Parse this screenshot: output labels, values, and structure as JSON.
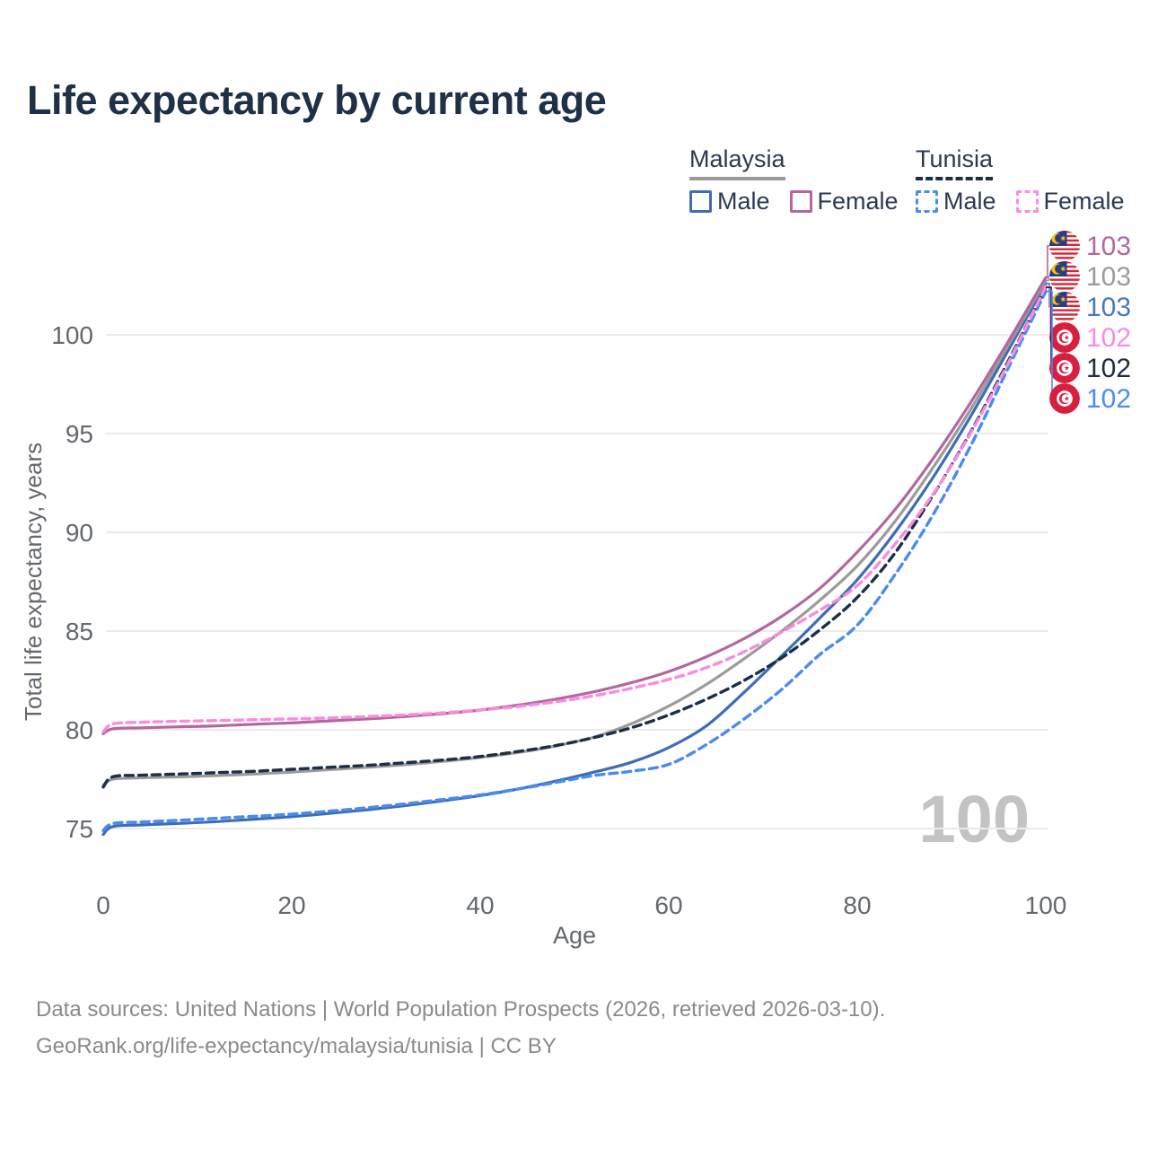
{
  "title": "Life expectancy by current age",
  "legend": {
    "groups": [
      {
        "label": "Malaysia",
        "line_style": "solid",
        "underline_color": "#9b9b9b",
        "items": [
          {
            "label": "Male",
            "color": "#3d6eb5"
          },
          {
            "label": "Female",
            "color": "#b4679e"
          }
        ]
      },
      {
        "label": "Tunisia",
        "line_style": "dashed",
        "underline_color": "#1d2e49",
        "items": [
          {
            "label": "Male",
            "color": "#4a8bf0"
          },
          {
            "label": "Female",
            "color": "#fb8ae0"
          }
        ]
      }
    ]
  },
  "chart_data": {
    "type": "line",
    "title": "Life expectancy by current age",
    "xlabel": "Age",
    "ylabel": "Total life expectancy, years",
    "xlim": [
      0,
      100
    ],
    "ylim": [
      73.6,
      103.6
    ],
    "x_ticks": [
      0,
      20,
      40,
      60,
      80,
      100
    ],
    "y_ticks": [
      75,
      80,
      85,
      90,
      95,
      100
    ],
    "grid": "horizontal-only",
    "legend_position": "top-right",
    "watermark": "100",
    "x": [
      0,
      1,
      4,
      8,
      12,
      16,
      20,
      24,
      28,
      32,
      36,
      40,
      44,
      48,
      52,
      56,
      60,
      64,
      68,
      72,
      76,
      80,
      84,
      88,
      92,
      96,
      100
    ],
    "series": [
      {
        "name": "Malaysia Male",
        "country": "Malaysia",
        "sex": "Male",
        "color": "#3d6eb5",
        "dashed": false,
        "values": [
          74.7,
          75.1,
          75.18,
          75.26,
          75.35,
          75.47,
          75.6,
          75.77,
          75.95,
          76.16,
          76.4,
          76.67,
          77.0,
          77.4,
          77.85,
          78.35,
          79.1,
          80.2,
          81.9,
          83.75,
          85.65,
          87.6,
          90.0,
          92.75,
          95.85,
          99.2,
          102.6
        ]
      },
      {
        "name": "Malaysia",
        "country": "Malaysia",
        "sex": "Both sexes",
        "color": "#9b9b9b",
        "dashed": false,
        "values": [
          77.2,
          77.5,
          77.57,
          77.62,
          77.68,
          77.76,
          77.86,
          77.98,
          78.1,
          78.23,
          78.4,
          78.6,
          78.85,
          79.18,
          79.62,
          80.3,
          81.2,
          82.3,
          83.6,
          85.0,
          86.55,
          88.3,
          90.55,
          93.25,
          96.2,
          99.45,
          102.75
        ]
      },
      {
        "name": "Malaysia Female",
        "country": "Malaysia",
        "sex": "Female",
        "color": "#b4679e",
        "dashed": false,
        "values": [
          79.8,
          80.05,
          80.1,
          80.15,
          80.2,
          80.28,
          80.35,
          80.45,
          80.55,
          80.67,
          80.82,
          81.0,
          81.25,
          81.55,
          81.92,
          82.38,
          82.95,
          83.7,
          84.62,
          85.75,
          87.15,
          89.0,
          91.15,
          93.7,
          96.55,
          99.65,
          102.9
        ]
      },
      {
        "name": "Tunisia Male",
        "country": "Tunisia",
        "sex": "Male",
        "color": "#4a8bf0",
        "dashed": true,
        "values": [
          74.9,
          75.25,
          75.33,
          75.42,
          75.52,
          75.62,
          75.73,
          75.88,
          76.05,
          76.25,
          76.47,
          76.7,
          77.0,
          77.33,
          77.68,
          77.9,
          78.25,
          79.25,
          80.55,
          82.05,
          83.8,
          85.3,
          87.85,
          90.85,
          94.35,
          98.3,
          102.2
        ]
      },
      {
        "name": "Tunisia",
        "country": "Tunisia",
        "sex": "Both sexes",
        "color": "#1d2e49",
        "dashed": true,
        "values": [
          77.1,
          77.62,
          77.7,
          77.76,
          77.83,
          77.9,
          78.0,
          78.1,
          78.2,
          78.33,
          78.47,
          78.65,
          78.9,
          79.2,
          79.6,
          80.1,
          80.75,
          81.55,
          82.5,
          83.65,
          85.05,
          86.7,
          88.95,
          91.85,
          95.05,
          98.65,
          102.4
        ]
      },
      {
        "name": "Tunisia Female",
        "country": "Tunisia",
        "sex": "Female",
        "color": "#fb8ae0",
        "dashed": true,
        "values": [
          79.9,
          80.3,
          80.38,
          80.43,
          80.47,
          80.51,
          80.55,
          80.6,
          80.67,
          80.75,
          80.86,
          81.0,
          81.18,
          81.42,
          81.72,
          82.1,
          82.55,
          83.15,
          83.95,
          84.95,
          86.05,
          87.3,
          89.4,
          91.9,
          95.0,
          98.55,
          102.45
        ]
      }
    ]
  },
  "end_labels": [
    {
      "flag": "malaysia",
      "value": "103",
      "color": "#b4679e",
      "series": "Malaysia Female"
    },
    {
      "flag": "malaysia",
      "value": "103",
      "color": "#9b9b9b",
      "series": "Malaysia"
    },
    {
      "flag": "malaysia",
      "value": "103",
      "color": "#4878c0",
      "series": "Malaysia Male"
    },
    {
      "flag": "tunisia",
      "value": "102",
      "color": "#fb8ae0",
      "series": "Tunisia Female"
    },
    {
      "flag": "tunisia",
      "value": "102",
      "color": "#202c40",
      "series": "Tunisia"
    },
    {
      "flag": "tunisia",
      "value": "102",
      "color": "#4a8cf5",
      "series": "Tunisia Male"
    }
  ],
  "footer": {
    "line1": "Data sources: United Nations | World Population Prospects (2026, retrieved 2026-03-10).",
    "line2": "GeoRank.org/life-expectancy/malaysia/tunisia | CC BY"
  }
}
